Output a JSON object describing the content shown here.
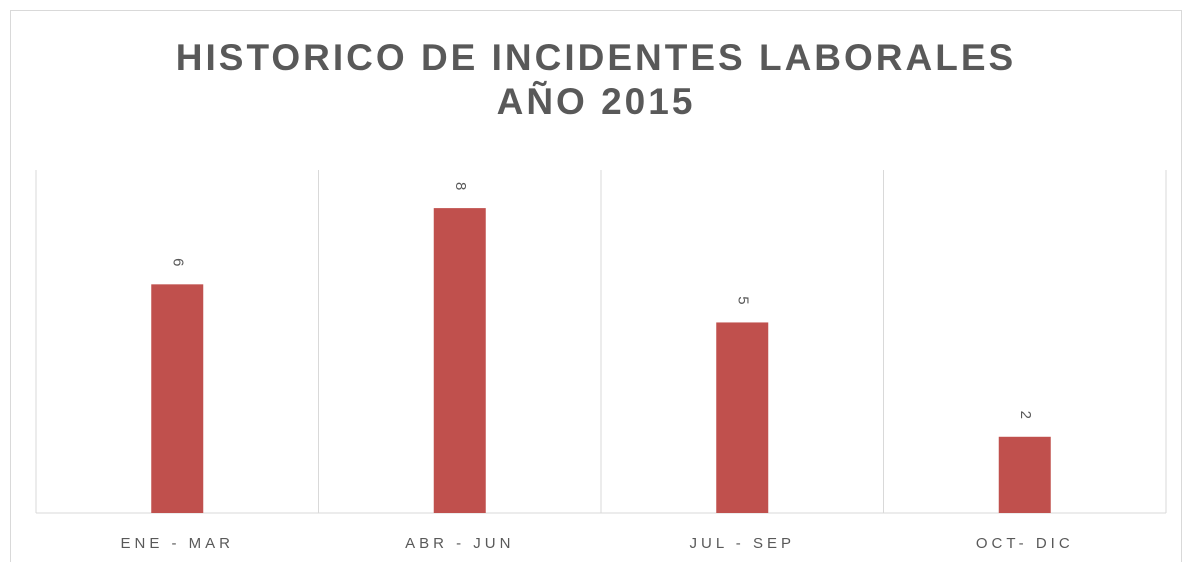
{
  "chart_data": {
    "type": "bar",
    "title": "HISTORICO DE INCIDENTES LABORALES AÑO 2015",
    "categories": [
      "ENE - MAR",
      "ABR - JUN",
      "JUL - SEP",
      "OCT- DIC"
    ],
    "values": [
      6,
      8,
      5,
      2
    ],
    "color": "#c0504d"
  }
}
